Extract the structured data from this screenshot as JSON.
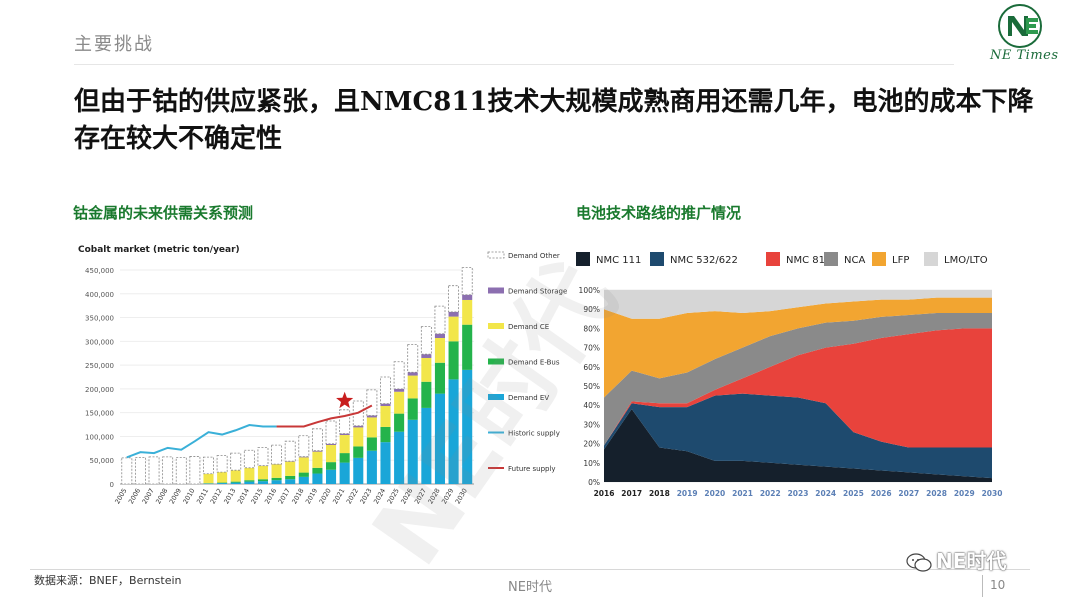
{
  "header": {
    "section_label": "主要挑战",
    "logo_text": "NE Times",
    "headline": "但由于钴的供应紧张，且NMC811技术大规模成熟商用还需几年，电池的成本下降存在较大不确定性"
  },
  "left_panel": {
    "title": "钴金属的未来供需关系预测"
  },
  "right_panel": {
    "title": "电池技术路线的推广情况"
  },
  "footer": {
    "source": "数据来源：BNEF，Bernstein",
    "brand": "NE时代",
    "page_number": "10",
    "wechat_handle": "NE时代"
  },
  "watermark": "NE时代",
  "colors": {
    "headline_green": "#1a7a2e",
    "demand_ev": "#1aa6d8",
    "demand_ebus": "#24b34b",
    "demand_ce": "#f2e64a",
    "demand_storage": "#8c6fb0",
    "demand_other_border": "#888888",
    "historic_supply": "#3ab0d8",
    "future_supply": "#c83838",
    "nmc111": "#15202c",
    "nmc532": "#1e4a6e",
    "nmc811": "#e8433c",
    "nca": "#8a8a8a",
    "lfp": "#f2a531",
    "lmo_lto": "#d6d6d6"
  },
  "chart_data": [
    {
      "type": "bar",
      "title": "Cobalt market (metric ton/year)",
      "categories": [
        "2005",
        "2006",
        "2007",
        "2008",
        "2009",
        "2010",
        "2011",
        "2012",
        "2013",
        "2014",
        "2015",
        "2016",
        "2017",
        "2018",
        "2019",
        "2020",
        "2021",
        "2022",
        "2023",
        "2024",
        "2025",
        "2026",
        "2027",
        "2028",
        "2029",
        "2030"
      ],
      "ylim": [
        0,
        450000
      ],
      "yticks": [
        "0",
        "50,000",
        "100,000",
        "150,000",
        "200,000",
        "250,000",
        "300,000",
        "350,000",
        "400,000",
        "450,000"
      ],
      "stacked": true,
      "series": [
        {
          "name": "Demand EV",
          "values": [
            0,
            0,
            0,
            0,
            0,
            0,
            1000,
            2000,
            3000,
            5000,
            6000,
            8000,
            10000,
            15000,
            22000,
            30000,
            45000,
            55000,
            70000,
            88000,
            110000,
            135000,
            160000,
            190000,
            220000,
            240000
          ]
        },
        {
          "name": "Demand E-Bus",
          "values": [
            0,
            0,
            0,
            0,
            0,
            0,
            500,
            1000,
            2000,
            3000,
            4000,
            5000,
            7000,
            9000,
            12000,
            16000,
            20000,
            24000,
            28000,
            32000,
            38000,
            45000,
            55000,
            65000,
            80000,
            95000
          ]
        },
        {
          "name": "Demand CE",
          "values": [
            0,
            0,
            0,
            0,
            0,
            0,
            20000,
            22000,
            24000,
            26000,
            28000,
            28000,
            30000,
            32000,
            34000,
            36000,
            38000,
            40000,
            42000,
            44000,
            46000,
            48000,
            50000,
            52000,
            52000,
            52000
          ]
        },
        {
          "name": "Demand Storage",
          "values": [
            0,
            0,
            0,
            0,
            0,
            0,
            0,
            0,
            0,
            0,
            500,
            800,
            1000,
            1500,
            2000,
            2500,
            3000,
            3500,
            4000,
            5000,
            6000,
            7000,
            8000,
            9000,
            10000,
            11000
          ]
        },
        {
          "name": "Demand Other",
          "values": [
            55000,
            56000,
            57000,
            57000,
            56000,
            58000,
            35000,
            35000,
            36000,
            37000,
            38000,
            40000,
            42000,
            44000,
            46000,
            48000,
            50000,
            52000,
            54000,
            56000,
            57000,
            58000,
            58000,
            58000,
            55000,
            57000
          ]
        }
      ],
      "lines": [
        {
          "name": "Historic supply",
          "x": [
            "2005",
            "2006",
            "2007",
            "2008",
            "2009",
            "2010",
            "2011",
            "2012",
            "2013",
            "2014",
            "2015",
            "2016"
          ],
          "values": [
            56000,
            67000,
            65000,
            76000,
            72000,
            90000,
            109000,
            104000,
            113000,
            124000,
            121000,
            121000
          ]
        },
        {
          "name": "Future supply",
          "x": [
            "2016",
            "2017",
            "2018",
            "2019",
            "2020",
            "2021",
            "2022",
            "2023"
          ],
          "values": [
            121000,
            121000,
            121000,
            130000,
            138000,
            143000,
            150000,
            165000
          ]
        }
      ],
      "annotations": [
        {
          "marker": "star",
          "x": "2021",
          "y": 175000
        }
      ]
    },
    {
      "type": "area",
      "stacked": true,
      "percent": true,
      "x": [
        "2016",
        "2017",
        "2018",
        "2019",
        "2020",
        "2021",
        "2022",
        "2023",
        "2024",
        "2025",
        "2026",
        "2027",
        "2028",
        "2029",
        "2030"
      ],
      "yticks": [
        "0%",
        "10%",
        "20%",
        "30%",
        "40%",
        "50%",
        "60%",
        "70%",
        "80%",
        "90%",
        "100%"
      ],
      "ylim": [
        0,
        100
      ],
      "series": [
        {
          "name": "NMC 111",
          "values": [
            17,
            38,
            18,
            16,
            11,
            11,
            10,
            9,
            8,
            7,
            6,
            5,
            4,
            3,
            2
          ]
        },
        {
          "name": "NMC 532/622",
          "values": [
            2,
            3,
            21,
            23,
            34,
            35,
            35,
            35,
            33,
            19,
            15,
            13,
            14,
            15,
            16
          ]
        },
        {
          "name": "NMC 811",
          "values": [
            0,
            1,
            2,
            2,
            3,
            8,
            15,
            22,
            29,
            46,
            54,
            59,
            61,
            62,
            62
          ]
        },
        {
          "name": "NCA",
          "values": [
            25,
            16,
            13,
            16,
            16,
            16,
            16,
            14,
            13,
            12,
            11,
            10,
            9,
            8,
            8
          ]
        },
        {
          "name": "LFP",
          "values": [
            46,
            27,
            31,
            31,
            25,
            18,
            13,
            11,
            10,
            10,
            9,
            8,
            8,
            8,
            8
          ]
        },
        {
          "name": "LMO/LTO",
          "values": [
            10,
            15,
            15,
            12,
            11,
            12,
            11,
            9,
            7,
            6,
            5,
            5,
            4,
            4,
            4
          ]
        }
      ],
      "xlabel_colors": {
        "actual": [
          "2016",
          "2017",
          "2018"
        ],
        "forecast_color": "#5b7fb5"
      }
    }
  ]
}
